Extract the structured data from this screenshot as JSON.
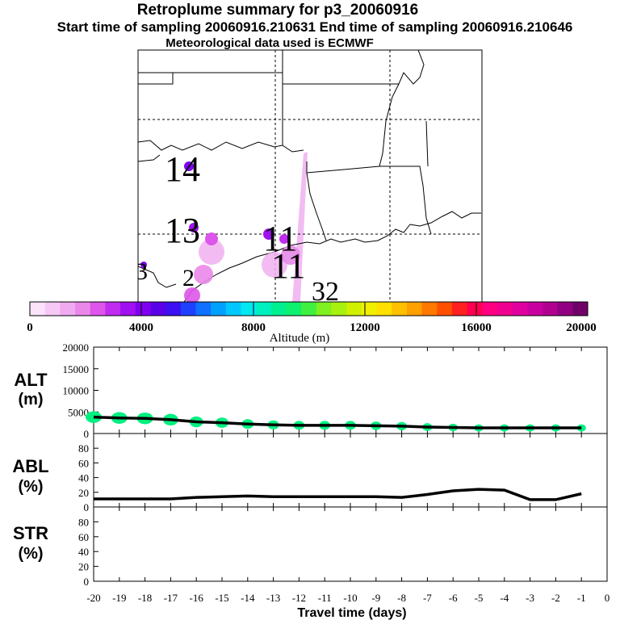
{
  "header": {
    "title": "Retroplume summary for p3_20060916",
    "sampling": "Start time of sampling 20060916.210631     End time of sampling 20060916.210646",
    "met": "Meteorological data used is ECMWF"
  },
  "colorbar": {
    "label": "Altitude (m)",
    "ticks": [
      "0",
      "4000",
      "8000",
      "12000",
      "16000",
      "20000"
    ],
    "colors": [
      "#fbe3fb",
      "#f6c8f6",
      "#f0aaf0",
      "#ea88ea",
      "#dd55ea",
      "#c02cf0",
      "#a010f0",
      "#8000f0",
      "#5a00e8",
      "#3c10f0",
      "#2040ff",
      "#1070ff",
      "#00a0ff",
      "#00c8ff",
      "#00e8f0",
      "#00f0c0",
      "#00f090",
      "#10f070",
      "#40f040",
      "#80f020",
      "#a8f010",
      "#d0f000",
      "#f0f000",
      "#ffe000",
      "#ffc000",
      "#ffa000",
      "#ff7800",
      "#ff5000",
      "#ff2020",
      "#ff0050",
      "#ff0080",
      "#f00090",
      "#e000a0",
      "#c800a0",
      "#b00090",
      "#900080",
      "#700068"
    ]
  },
  "map": {
    "day_labels": [
      {
        "text": "14"
      },
      {
        "text": "13"
      },
      {
        "text": "3"
      },
      {
        "text": "2"
      },
      {
        "text": "11"
      },
      {
        "text": "11"
      },
      {
        "text": "32"
      }
    ]
  },
  "panels": {
    "alt_label": "ALT",
    "alt_unit": "(m)",
    "abl_label": "ABL",
    "abl_unit": "(%)",
    "str_label": "STR",
    "str_unit": "(%)",
    "xlabel": "Travel time (days)"
  },
  "chart_data": [
    {
      "type": "line",
      "name": "ALT",
      "title": "ALT (m)",
      "x": [
        -20,
        -19,
        -18,
        -17,
        -16,
        -15,
        -14,
        -13,
        -12,
        -11,
        -10,
        -9,
        -8,
        -7,
        -6,
        -5,
        -4,
        -3,
        -2,
        -1
      ],
      "y": [
        3800,
        3600,
        3500,
        3200,
        2700,
        2500,
        2200,
        2000,
        1900,
        1900,
        1900,
        1800,
        1700,
        1500,
        1400,
        1300,
        1300,
        1300,
        1300,
        1300
      ],
      "ylim": [
        0,
        20000
      ],
      "yticks": [
        "0",
        "5000",
        "10000",
        "15000",
        "20000"
      ],
      "marker_color": "#00f080"
    },
    {
      "type": "line",
      "name": "ABL",
      "title": "ABL (%)",
      "x": [
        -20,
        -19,
        -18,
        -17,
        -16,
        -15,
        -14,
        -13,
        -12,
        -11,
        -10,
        -9,
        -8,
        -7,
        -6,
        -5,
        -4,
        -3,
        -2,
        -1
      ],
      "y": [
        11,
        11,
        11,
        11,
        13,
        14,
        15,
        14,
        14,
        14,
        14,
        14,
        13,
        17,
        22,
        24,
        23,
        10,
        10,
        18
      ],
      "ylim": [
        0,
        100
      ],
      "yticks": [
        "0",
        "20",
        "40",
        "60",
        "80"
      ]
    },
    {
      "type": "line",
      "name": "STR",
      "title": "STR (%)",
      "x": [],
      "y": [],
      "ylim": [
        0,
        100
      ],
      "yticks": [
        "0",
        "20",
        "40",
        "60",
        "80"
      ]
    }
  ],
  "xaxis": {
    "xlim": [
      -20,
      0
    ],
    "ticks": [
      "-20",
      "-19",
      "-18",
      "-17",
      "-16",
      "-15",
      "-14",
      "-13",
      "-12",
      "-11",
      "-10",
      "-9",
      "-8",
      "-7",
      "-6",
      "-5",
      "-4",
      "-3",
      "-2",
      "-1",
      "0"
    ]
  }
}
